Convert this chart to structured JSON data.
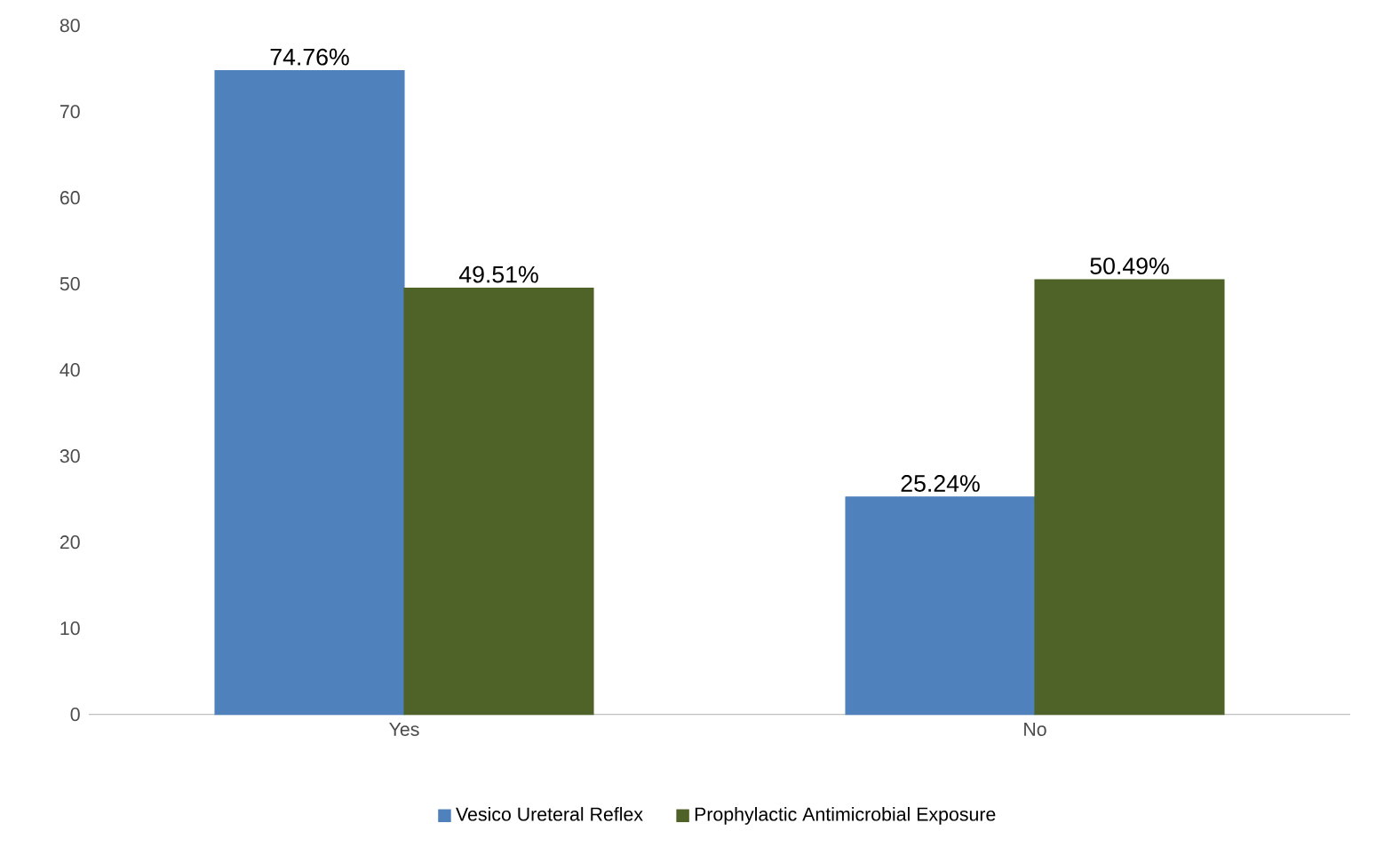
{
  "chart_data": {
    "type": "bar",
    "categories": [
      "Yes",
      "No"
    ],
    "series": [
      {
        "name": "Vesico Ureteral Reflex",
        "color": "#4f81bd",
        "values": [
          74.76,
          25.24
        ],
        "value_labels": [
          "74.76%",
          "25.24%"
        ]
      },
      {
        "name": "Prophylactic Antimicrobial Exposure",
        "color": "#4f6228",
        "values": [
          49.51,
          50.49
        ],
        "value_labels": [
          "49.51%",
          "50.49%"
        ]
      }
    ],
    "ylim": [
      0,
      80
    ],
    "yticks": [
      0,
      10,
      20,
      30,
      40,
      50,
      60,
      70,
      80
    ],
    "grid": false,
    "legend": "bottom"
  }
}
